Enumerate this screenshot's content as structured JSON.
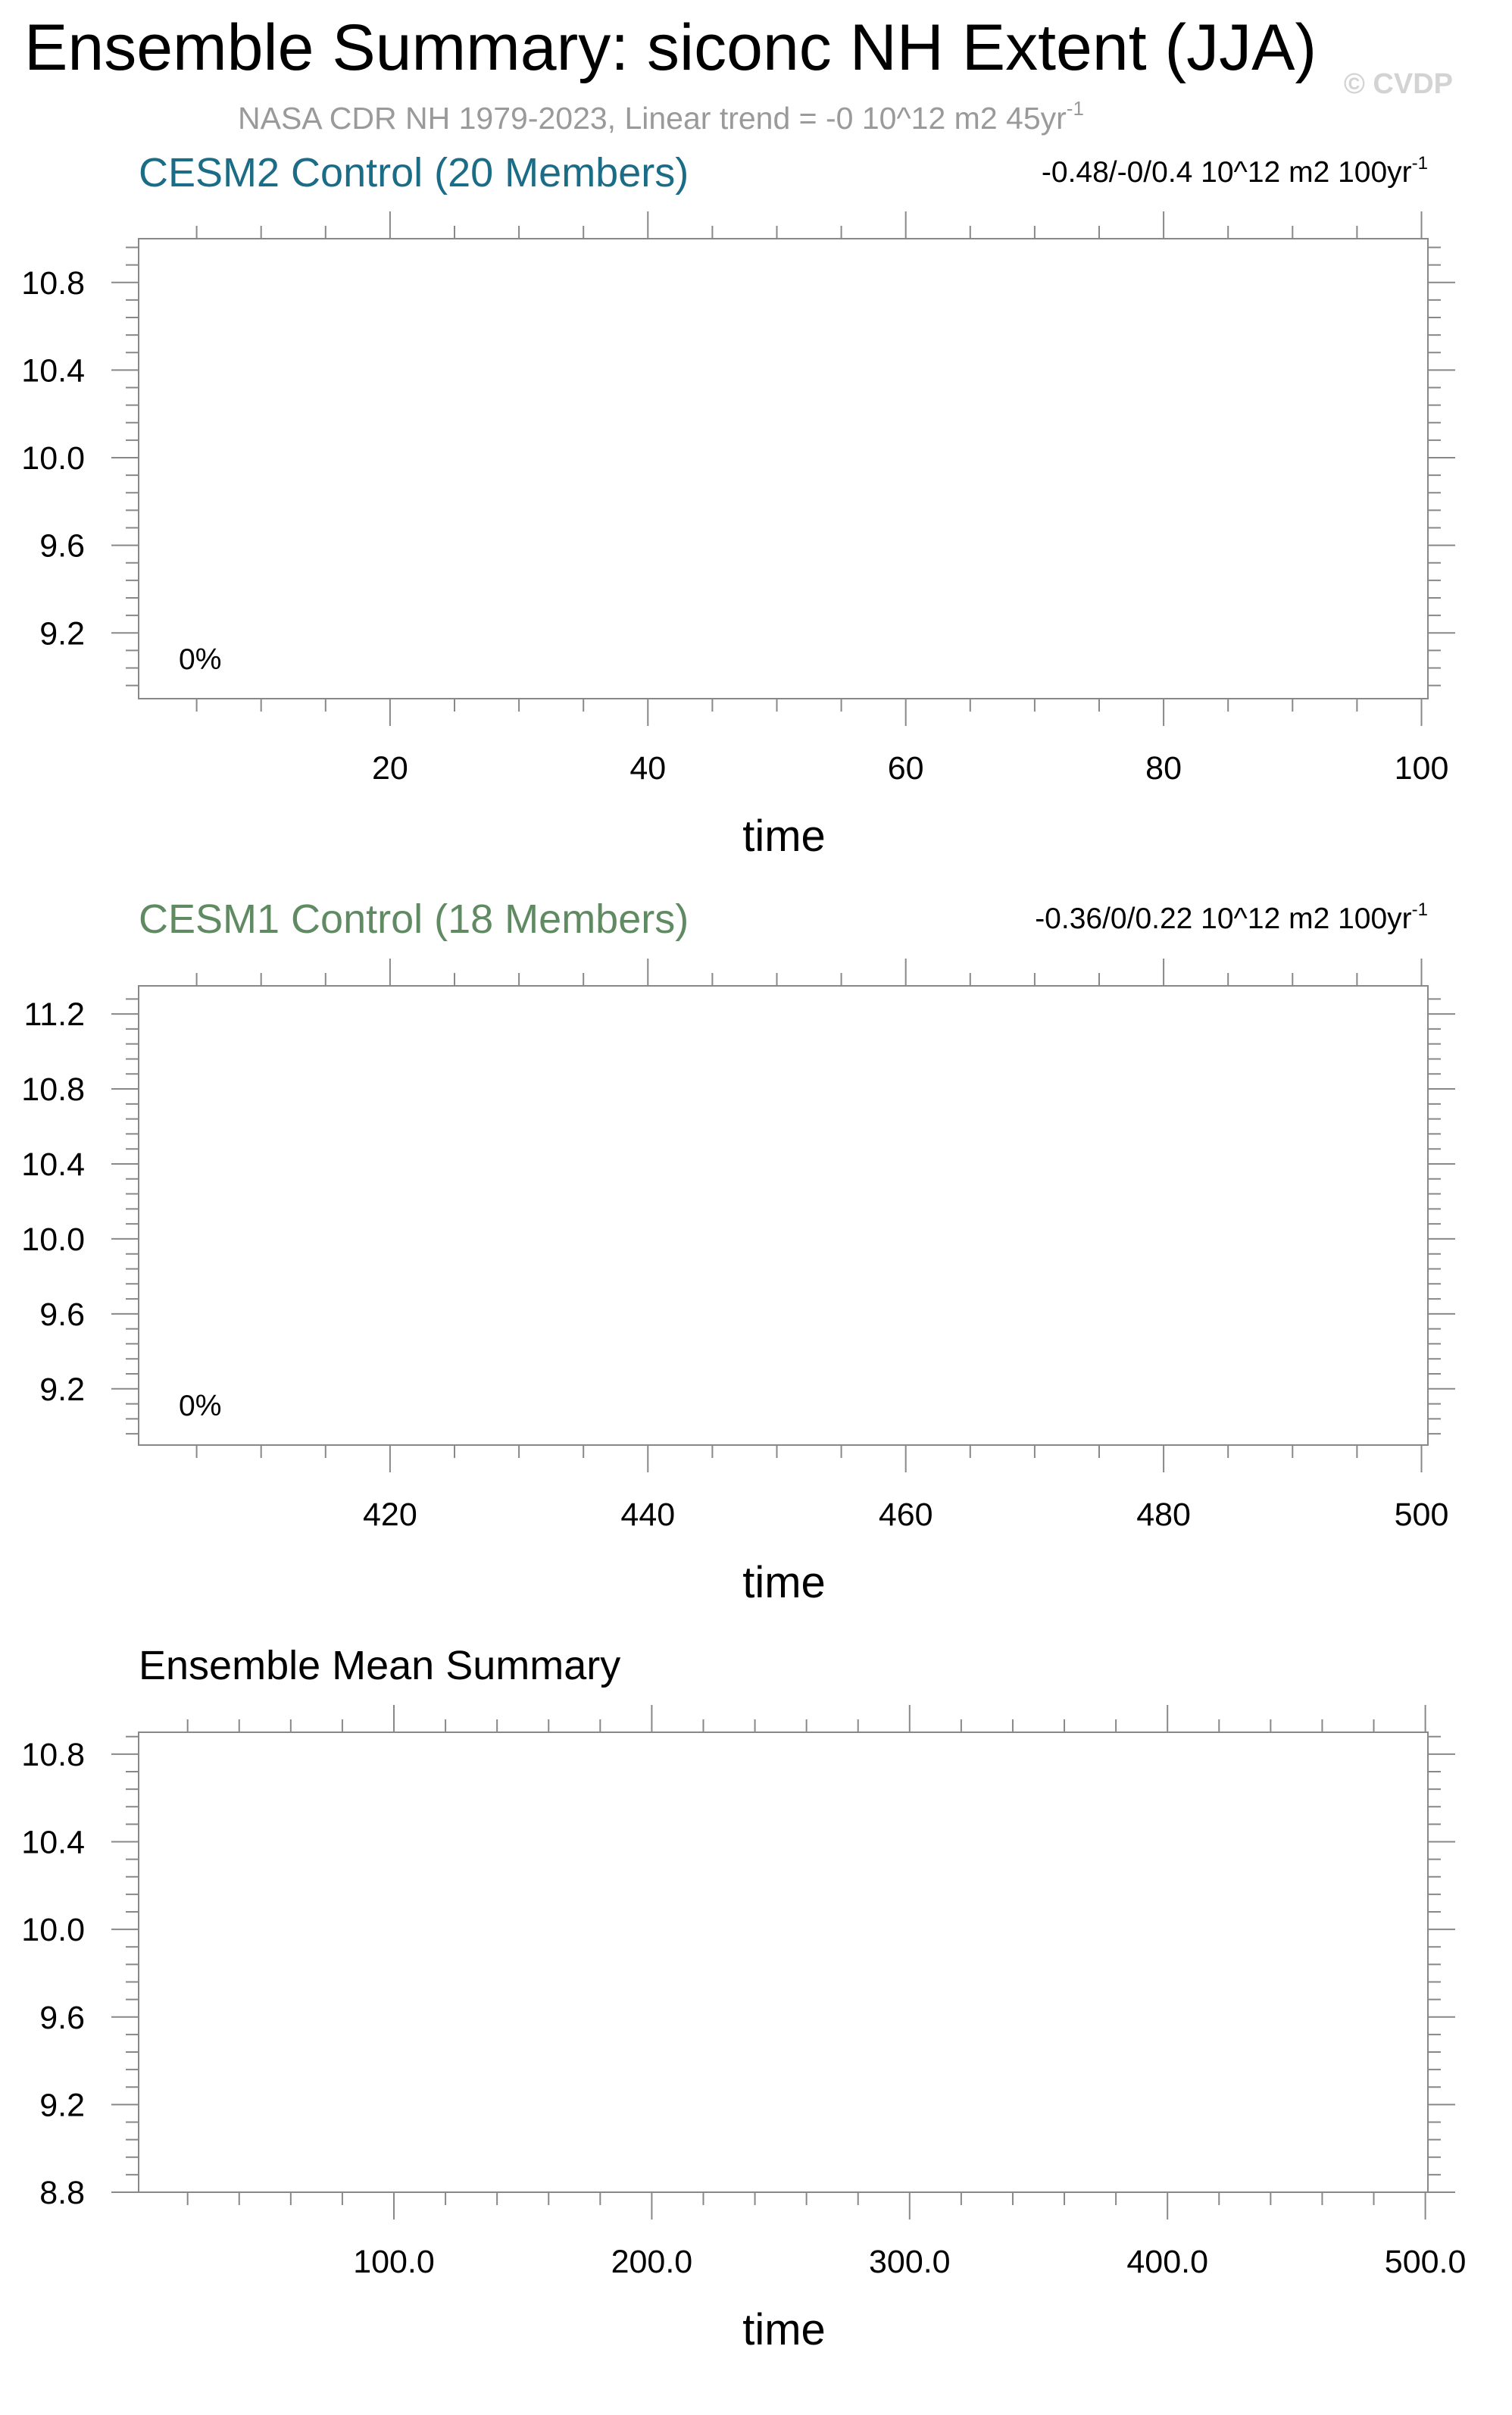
{
  "figure": {
    "title": "Ensemble Summary: siconc NH Extent (JJA)",
    "subtitle": "NASA CDR NH 1979-2023, Linear trend = -0 10^12 m2 45yr",
    "subtitle_sup": "-1",
    "watermark": "© CVDP"
  },
  "colors": {
    "panel1_title": "#1b6c86",
    "panel2_title": "#5f8a62",
    "panel3_title": "#000000",
    "subtitle": "#9a9a9a",
    "watermark": "#d3d3d3",
    "axes": "#888888"
  },
  "chart_data": [
    {
      "type": "line",
      "title": "CESM2 Control (20 Members)",
      "trend_label": "-0.48/-0/0.4 10^12 m2 100yr",
      "trend_sup": "-1",
      "annotation": "0%",
      "xlabel": "time",
      "ylabel": "",
      "xlim": [
        0.5,
        100.5
      ],
      "ylim": [
        8.9,
        11.0
      ],
      "xticks": [
        20,
        40,
        60,
        80,
        100
      ],
      "xtick_labels": [
        "20",
        "40",
        "60",
        "80",
        "100"
      ],
      "yticks": [
        9.2,
        9.6,
        10.0,
        10.4,
        10.8
      ],
      "ytick_labels": [
        "9.2",
        "9.6",
        "10.0",
        "10.4",
        "10.8"
      ],
      "x_minor_step": 5,
      "y_minor_step": 0.08,
      "grid": false,
      "series": []
    },
    {
      "type": "line",
      "title": "CESM1 Control (18 Members)",
      "trend_label": "-0.36/0/0.22 10^12 m2 100yr",
      "trend_sup": "-1",
      "annotation": "0%",
      "xlabel": "time",
      "ylabel": "",
      "xlim": [
        400.5,
        500.5
      ],
      "ylim": [
        8.9,
        11.35
      ],
      "xticks": [
        420,
        440,
        460,
        480,
        500
      ],
      "xtick_labels": [
        "420",
        "440",
        "460",
        "480",
        "500"
      ],
      "yticks": [
        9.2,
        9.6,
        10.0,
        10.4,
        10.8,
        11.2
      ],
      "ytick_labels": [
        "9.2",
        "9.6",
        "10.0",
        "10.4",
        "10.8",
        "11.2"
      ],
      "x_minor_step": 5,
      "y_minor_step": 0.08,
      "grid": false,
      "series": []
    },
    {
      "type": "line",
      "title": "Ensemble Mean Summary",
      "trend_label": "",
      "trend_sup": "",
      "annotation": "",
      "xlabel": "time",
      "ylabel": "",
      "xlim": [
        1,
        501
      ],
      "ylim": [
        8.8,
        10.9
      ],
      "xticks": [
        100,
        200,
        300,
        400,
        500
      ],
      "xtick_labels": [
        "100.0",
        "200.0",
        "300.0",
        "400.0",
        "500.0"
      ],
      "yticks": [
        8.8,
        9.2,
        9.6,
        10.0,
        10.4,
        10.8
      ],
      "ytick_labels": [
        "8.8",
        "9.2",
        "9.6",
        "10.0",
        "10.4",
        "10.8"
      ],
      "x_minor_step": 20,
      "y_minor_step": 0.08,
      "grid": false,
      "series": []
    }
  ]
}
